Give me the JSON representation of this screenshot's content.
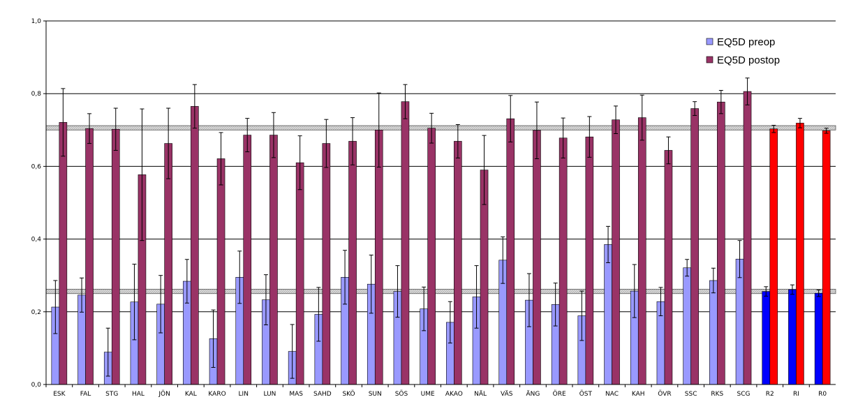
{
  "chart_data": {
    "type": "bar",
    "title": "",
    "xlabel": "",
    "ylabel": "",
    "ylim": [
      0,
      1
    ],
    "y_ticks": [
      "0,0",
      "0,2",
      "0,4",
      "0,6",
      "0,8",
      "1,0"
    ],
    "y_tick_values": [
      0,
      0.2,
      0.4,
      0.6,
      0.8,
      1.0
    ],
    "grid": "horizontal",
    "legend_position": "top-right",
    "categories": [
      "ESK",
      "FAL",
      "STG",
      "HAL",
      "JÖN",
      "KAL",
      "KARO",
      "LIN",
      "LUN",
      "MAS",
      "SAHD",
      "SKÖ",
      "SUN",
      "SÖS",
      "UME",
      "AKAO",
      "NÄL",
      "VÄS",
      "ÄNG",
      "ÖRE",
      "ÖST",
      "NAC",
      "KAH",
      "ÖVR",
      "SSC",
      "RKS",
      "SCG",
      "R2",
      "RI",
      "R0"
    ],
    "series": [
      {
        "name": "EQ5D preop",
        "color": "#9999ff",
        "values": [
          0.213,
          0.246,
          0.089,
          0.227,
          0.221,
          0.284,
          0.126,
          0.295,
          0.233,
          0.091,
          0.193,
          0.295,
          0.276,
          0.256,
          0.208,
          0.171,
          0.241,
          0.342,
          0.232,
          0.22,
          0.189,
          0.385,
          0.257,
          0.228,
          0.321,
          0.286,
          0.345,
          0.256,
          0.261,
          0.251
        ],
        "error": [
          0.073,
          0.047,
          0.066,
          0.104,
          0.079,
          0.06,
          0.079,
          0.072,
          0.069,
          0.074,
          0.074,
          0.074,
          0.08,
          0.071,
          0.06,
          0.057,
          0.086,
          0.064,
          0.073,
          0.059,
          0.068,
          0.05,
          0.073,
          0.039,
          0.023,
          0.034,
          0.051,
          0.013,
          0.013,
          0.009
        ]
      },
      {
        "name": "EQ5D postop",
        "color": "#993366",
        "values": [
          0.721,
          0.704,
          0.702,
          0.577,
          0.663,
          0.765,
          0.621,
          0.686,
          0.686,
          0.61,
          0.663,
          0.669,
          0.7,
          0.778,
          0.705,
          0.669,
          0.59,
          0.731,
          0.699,
          0.678,
          0.681,
          0.728,
          0.734,
          0.644,
          0.759,
          0.777,
          0.806,
          0.703,
          0.719,
          0.698
        ],
        "error": [
          0.093,
          0.041,
          0.058,
          0.181,
          0.097,
          0.06,
          0.072,
          0.046,
          0.062,
          0.074,
          0.066,
          0.065,
          0.102,
          0.047,
          0.041,
          0.046,
          0.095,
          0.064,
          0.078,
          0.055,
          0.056,
          0.038,
          0.062,
          0.037,
          0.019,
          0.032,
          0.037,
          0.01,
          0.013,
          0.007
        ]
      }
    ],
    "highlight_colors": {
      "preop": "#0000ff",
      "postop": "#ff0000"
    },
    "highlighted_categories": [
      "R2",
      "RI",
      "R0"
    ],
    "reference_bands": [
      {
        "from": 0.7,
        "to": 0.712
      },
      {
        "from": 0.25,
        "to": 0.262
      }
    ]
  }
}
